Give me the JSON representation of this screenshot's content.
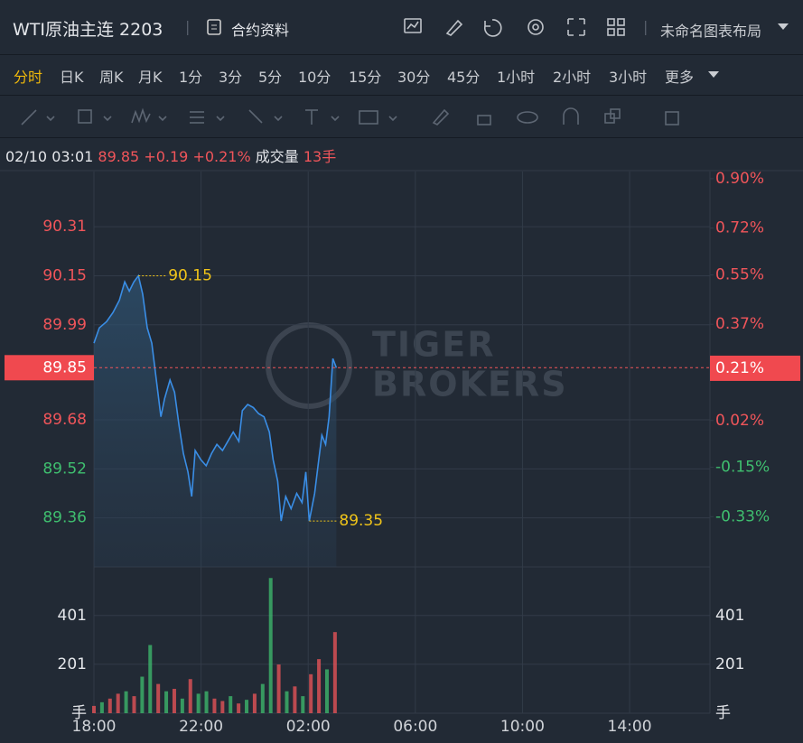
{
  "header": {
    "title": "WTI原油主连 2203",
    "info_button": "合约资料",
    "layout_name": "未命名图表布局"
  },
  "periods": [
    "分时",
    "日K",
    "周K",
    "月K",
    "1分",
    "3分",
    "5分",
    "10分",
    "15分",
    "30分",
    "45分",
    "1小时",
    "2小时",
    "3小时",
    "更多"
  ],
  "quote": {
    "time": "02/10 03:01",
    "price": "89.85",
    "change": "+0.19",
    "change_pct": "+0.21%",
    "volume_label": "成交量",
    "volume": "13手"
  },
  "chart_data": [
    {
      "type": "line",
      "watermark": [
        "TIGER",
        "BROKERS"
      ],
      "x": [
        0,
        0.2,
        0.47,
        0.71,
        0.95,
        1.15,
        1.32,
        1.49,
        1.66,
        1.82,
        1.99,
        2.16,
        2.33,
        2.5,
        2.64,
        2.84,
        3.01,
        3.18,
        3.34,
        3.51,
        3.65,
        3.78,
        3.99,
        4.19,
        4.39,
        4.59,
        4.8,
        5,
        5.2,
        5.41,
        5.54,
        5.74,
        5.95,
        6.15,
        6.35,
        6.55,
        6.69,
        6.86,
        6.99,
        7.16,
        7.36,
        7.57,
        7.77,
        7.91,
        8.04,
        8.24,
        8.38,
        8.51,
        8.65,
        8.78,
        8.92,
        9.05
      ],
      "series": [
        {
          "color": "#3a8ee6",
          "values": [
            89.93,
            89.98,
            90,
            90.03,
            90.07,
            90.13,
            90.1,
            90.13,
            90.15,
            90.09,
            89.98,
            89.93,
            89.81,
            89.69,
            89.75,
            89.81,
            89.77,
            89.66,
            89.57,
            89.51,
            89.43,
            89.58,
            89.55,
            89.53,
            89.57,
            89.6,
            89.58,
            89.61,
            89.64,
            89.61,
            89.71,
            89.73,
            89.72,
            89.7,
            89.69,
            89.64,
            89.55,
            89.48,
            89.35,
            89.43,
            89.39,
            89.44,
            89.41,
            89.51,
            89.35,
            89.44,
            89.54,
            89.63,
            89.6,
            89.69,
            89.88,
            89.85
          ]
        }
      ],
      "xlim": [
        0,
        23
      ],
      "xticks": [
        {
          "value": 0,
          "label": "18:00"
        },
        {
          "value": 4,
          "label": "22:00"
        },
        {
          "value": 8,
          "label": "02:00"
        },
        {
          "value": 12,
          "label": "06:00"
        },
        {
          "value": 16,
          "label": "10:00"
        },
        {
          "value": 20,
          "label": "14:00"
        }
      ],
      "ylim": [
        89.2,
        90.49
      ],
      "yticks": [
        90.31,
        90.15,
        89.99,
        89.68,
        89.52,
        89.36
      ],
      "y2lim": [
        -0.513,
        0.926
      ],
      "y2ticks": [
        {
          "value": 0.9,
          "label": "0.90%"
        },
        {
          "value": 0.72,
          "label": "0.72%"
        },
        {
          "value": 0.55,
          "label": "0.55%"
        },
        {
          "value": 0.37,
          "label": "0.37%"
        },
        {
          "value": 0.02,
          "label": "0.02%"
        },
        {
          "value": -0.15,
          "label": "-0.15%"
        },
        {
          "value": -0.33,
          "label": "-0.33%"
        }
      ],
      "last_price": 89.85,
      "last_pct": {
        "value": 0.21,
        "label": "0.21%"
      },
      "annotations": [
        {
          "x": 1.66,
          "y": 90.15
        },
        {
          "x": 8.04,
          "y": 89.35
        }
      ],
      "up_color": "#f0555a",
      "down_color": "#3fbf6f",
      "grid": true
    },
    {
      "type": "bar",
      "xlim": [
        0,
        23
      ],
      "ylim": [
        0,
        593
      ],
      "yticks": [
        201,
        401
      ],
      "unit": "手",
      "x": [
        0,
        0.3,
        0.6,
        0.9,
        1.2,
        1.5,
        1.8,
        2.1,
        2.4,
        2.7,
        3,
        3.3,
        3.6,
        3.9,
        4.2,
        4.5,
        4.8,
        5.1,
        5.4,
        5.7,
        6,
        6.3,
        6.6,
        6.9,
        7.2,
        7.5,
        7.8,
        8.1,
        8.4,
        8.7,
        9
      ],
      "values": [
        30,
        45,
        60,
        80,
        90,
        70,
        150,
        280,
        120,
        90,
        100,
        60,
        140,
        80,
        90,
        60,
        50,
        70,
        40,
        55,
        80,
        120,
        555,
        200,
        90,
        110,
        70,
        160,
        222,
        180,
        333
      ],
      "colors": [
        "#f0555a",
        "#3fbf6f",
        "#f0555a",
        "#f0555a",
        "#3fbf6f",
        "#f0555a",
        "#3fbf6f",
        "#3fbf6f",
        "#f0555a",
        "#3fbf6f",
        "#f0555a",
        "#3fbf6f",
        "#f0555a",
        "#3fbf6f",
        "#3fbf6f",
        "#f0555a",
        "#f0555a",
        "#3fbf6f",
        "#f0555a",
        "#3fbf6f",
        "#f0555a",
        "#3fbf6f",
        "#3fbf6f",
        "#f0555a",
        "#3fbf6f",
        "#f0555a",
        "#3fbf6f",
        "#f0555a",
        "#f0555a",
        "#3fbf6f",
        "#f0555a"
      ]
    }
  ]
}
